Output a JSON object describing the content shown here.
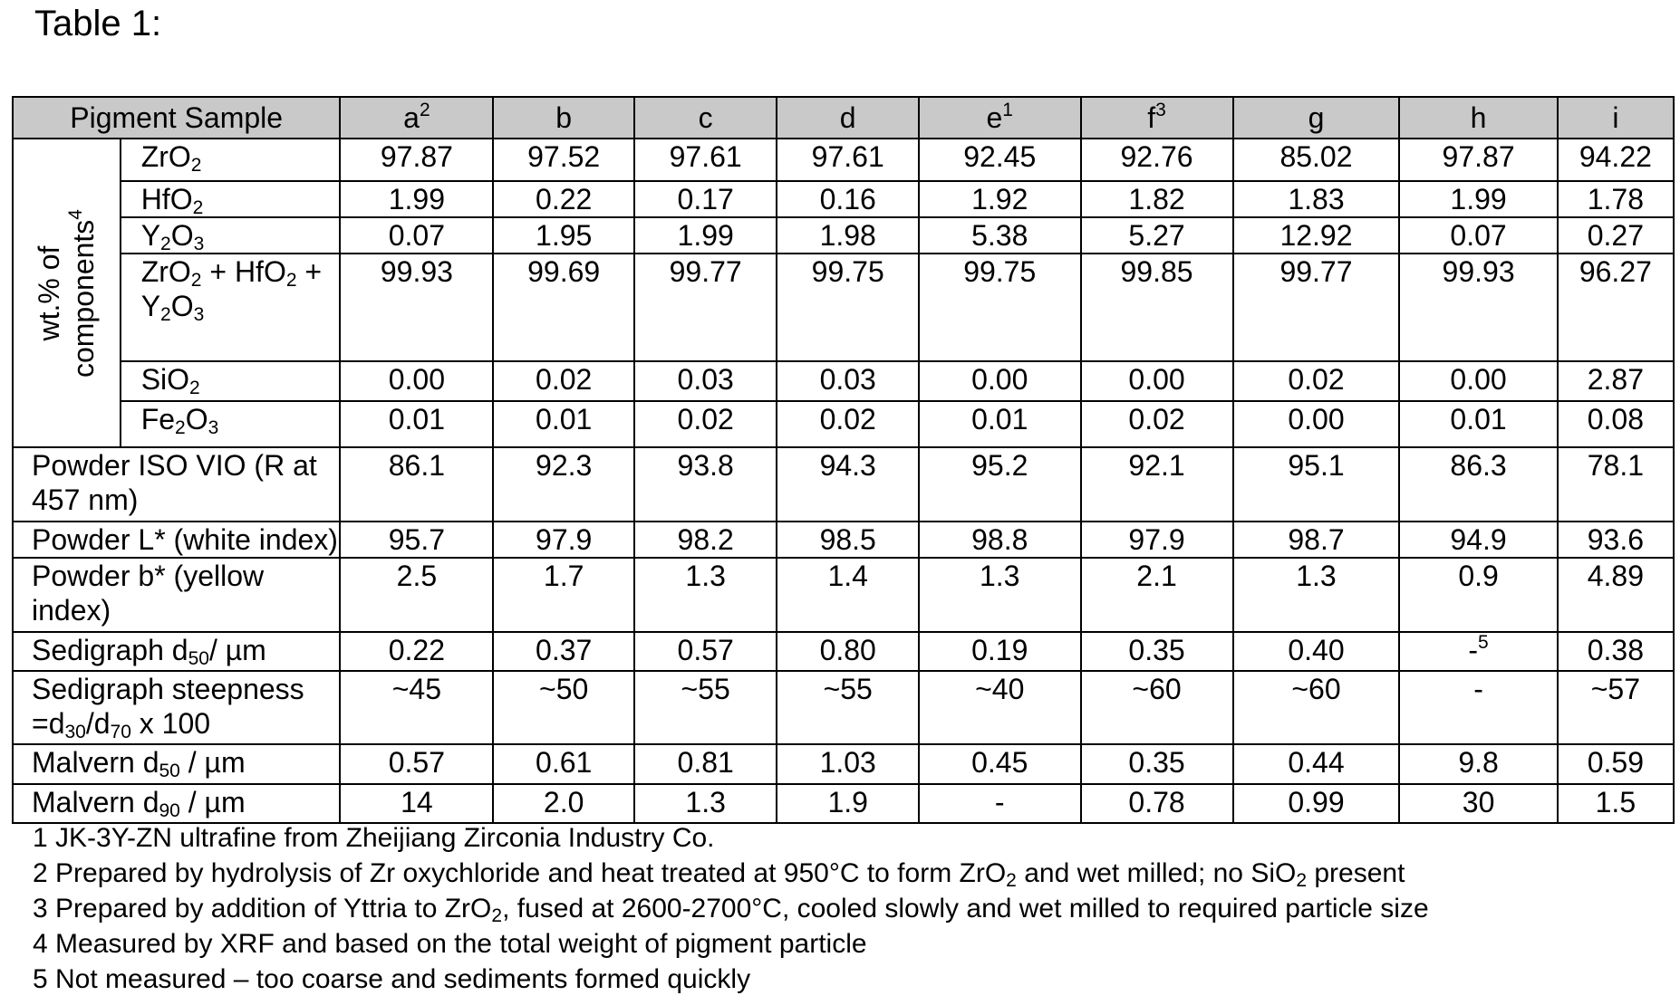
{
  "title": "Table 1:",
  "header": {
    "sample_label": "Pigment Sample",
    "samples": [
      {
        "id": "a",
        "note": "2"
      },
      {
        "id": "b",
        "note": ""
      },
      {
        "id": "c",
        "note": ""
      },
      {
        "id": "d",
        "note": ""
      },
      {
        "id": "e",
        "note": "1"
      },
      {
        "id": "f",
        "note": "3"
      },
      {
        "id": "g",
        "note": ""
      },
      {
        "id": "h",
        "note": ""
      },
      {
        "id": "i",
        "note": ""
      }
    ]
  },
  "group_label": {
    "line1": "wt.% of",
    "line2": "components",
    "note": "4"
  },
  "rows": {
    "zro2": {
      "label_a": "ZrO",
      "label_sub": "2",
      "values": [
        "97.87",
        "97.52",
        "97.61",
        "97.61",
        "92.45",
        "92.76",
        "85.02",
        "97.87",
        "94.22"
      ]
    },
    "hfo2": {
      "label_a": "HfO",
      "label_sub": "2",
      "values": [
        "1.99",
        "0.22",
        "0.17",
        "0.16",
        "1.92",
        "1.82",
        "1.83",
        "1.99",
        "1.78"
      ]
    },
    "y2o3": {
      "label_a": "Y",
      "label_sub1": "2",
      "label_b": "O",
      "label_sub2": "3",
      "values": [
        "0.07",
        "1.95",
        "1.99",
        "1.98",
        "5.38",
        "5.27",
        "12.92",
        "0.07",
        "0.27"
      ]
    },
    "sum": {
      "p1": "ZrO",
      "s1": "2",
      "p2": " + HfO",
      "s2": "2",
      "p3": " +",
      "p4": "Y",
      "s4": "2",
      "p5": "O",
      "s5": "3",
      "values": [
        "99.93",
        "99.69",
        "99.77",
        "99.75",
        "99.75",
        "99.85",
        "99.77",
        "99.93",
        "96.27"
      ]
    },
    "sio2": {
      "label_a": "SiO",
      "label_sub": "2",
      "values": [
        "0.00",
        "0.02",
        "0.03",
        "0.03",
        "0.00",
        "0.00",
        "0.02",
        "0.00",
        "2.87"
      ]
    },
    "fe2o3": {
      "label_a": "Fe",
      "label_sub1": "2",
      "label_b": "O",
      "label_sub2": "3",
      "values": [
        "0.01",
        "0.01",
        "0.02",
        "0.02",
        "0.01",
        "0.02",
        "0.00",
        "0.01",
        "0.08"
      ]
    },
    "iso": {
      "label": "Powder ISO VIO (R at 457 nm)",
      "values": [
        "86.1",
        "92.3",
        "93.8",
        "94.3",
        "95.2",
        "92.1",
        "95.1",
        "86.3",
        "78.1"
      ]
    },
    "lstar": {
      "label": "Powder L* (white index)",
      "values": [
        "95.7",
        "97.9",
        "98.2",
        "98.5",
        "98.8",
        "97.9",
        "98.7",
        "94.9",
        "93.6"
      ]
    },
    "bstar": {
      "label": "Powder b* (yellow index)",
      "values": [
        "2.5",
        "1.7",
        "1.3",
        "1.4",
        "1.3",
        "2.1",
        "1.3",
        "0.9",
        "4.89"
      ]
    },
    "sed_d50": {
      "p1": "Sedigraph d",
      "s1": "50",
      "p2": "/ µm",
      "values": [
        "0.22",
        "0.37",
        "0.57",
        "0.80",
        "0.19",
        "0.35",
        "0.40",
        "-",
        "0.38"
      ],
      "h_note": "5"
    },
    "steep": {
      "p1": "Sedigraph steepness",
      "p2": "=d",
      "s2": "30",
      "p3": "/d",
      "s3": "70",
      "p4": " x 100",
      "values": [
        "~45",
        "~50",
        "~55",
        "~55",
        "~40",
        "~60",
        "~60",
        "-",
        "~57"
      ]
    },
    "mal_d50": {
      "p1": "Malvern d",
      "s1": "50",
      "p2": " / µm",
      "values": [
        "0.57",
        "0.61",
        "0.81",
        "1.03",
        "0.45",
        "0.35",
        "0.44",
        "9.8",
        "0.59"
      ]
    },
    "mal_d90": {
      "p1": "Malvern d",
      "s1": "90",
      "p2": " / µm",
      "values": [
        "14",
        "2.0",
        "1.3",
        "1.9",
        "-",
        "0.78",
        "0.99",
        "30",
        "1.5"
      ]
    }
  },
  "footnotes": {
    "n1": "1 JK-3Y-ZN ultrafine from Zheijiang Zirconia Industry Co.",
    "n2a": "2 Prepared by hydrolysis of Zr oxychloride and heat treated at 950°C to form ZrO",
    "n2s1": "2",
    "n2b": " and wet milled; no SiO",
    "n2s2": "2",
    "n2c": " present",
    "n3a": "3 Prepared by addition of Yttria to ZrO",
    "n3s": "2",
    "n3b": ", fused at 2600-2700°C, cooled slowly and wet milled to required particle size",
    "n4": "4 Measured by XRF and based on the total weight of pigment particle",
    "n5": "5 Not measured – too coarse and sediments formed quickly"
  }
}
